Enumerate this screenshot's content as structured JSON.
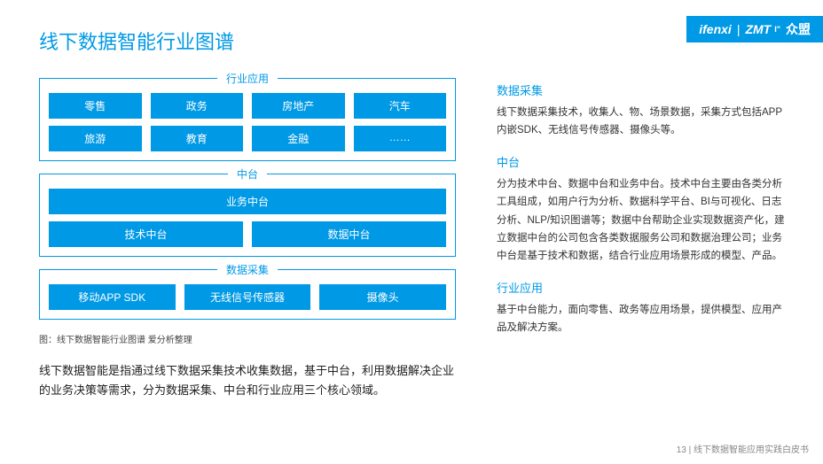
{
  "brand": {
    "left": "ifenxi",
    "mid": "ZMT",
    "sup": "I\"",
    "cn": "众盟"
  },
  "title": "线下数据智能行业图谱",
  "groups": [
    {
      "label": "行业应用",
      "rows": [
        [
          "零售",
          "政务",
          "房地产",
          "汽车"
        ],
        [
          "旅游",
          "教育",
          "金融",
          "……"
        ]
      ]
    },
    {
      "label": "中台",
      "rows": [
        [
          "业务中台"
        ],
        [
          "技术中台",
          "数据中台"
        ]
      ]
    },
    {
      "label": "数据采集",
      "rows": [
        [
          "移动APP SDK",
          "无线信号传感器",
          "摄像头"
        ]
      ]
    }
  ],
  "caption": "图：线下数据智能行业图谱  爱分析整理",
  "desc": "线下数据智能是指通过线下数据采集技术收集数据，基于中台，利用数据解决企业的业务决策等需求，分为数据采集、中台和行业应用三个核心领域。",
  "sections": [
    {
      "title": "数据采集",
      "body": "线下数据采集技术，收集人、物、场景数据，采集方式包括APP内嵌SDK、无线信号传感器、摄像头等。"
    },
    {
      "title": "中台",
      "body": "分为技术中台、数据中台和业务中台。技术中台主要由各类分析工具组成，如用户行为分析、数据科学平台、BI与可视化、日志分析、NLP/知识图谱等；数据中台帮助企业实现数据资产化，建立数据中台的公司包含各类数据服务公司和数据治理公司；业务中台是基于技术和数据，结合行业应用场景形成的模型、产品。"
    },
    {
      "title": "行业应用",
      "body": "基于中台能力，面向零售、政务等应用场景，提供模型、应用产品及解决方案。"
    }
  ],
  "footer": {
    "page": "13",
    "sep": " | ",
    "doc": "线下数据智能应用实践白皮书"
  },
  "colors": {
    "accent": "#0099e5"
  }
}
